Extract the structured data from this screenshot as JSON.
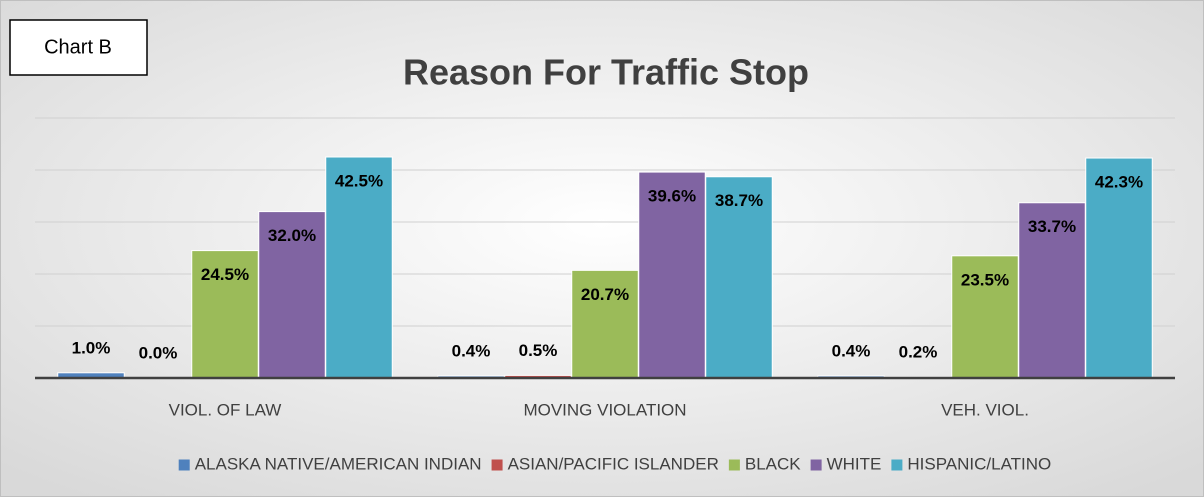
{
  "chart_data": {
    "type": "bar",
    "annotation": "Chart B",
    "title": "Reason For Traffic Stop",
    "categories": [
      "VIOL. OF LAW",
      "MOVING VIOLATION",
      "VEH. VIOL."
    ],
    "series": [
      {
        "name": "ALASKA NATIVE/AMERICAN INDIAN",
        "color": "#4f81bd",
        "values": [
          1.0,
          0.4,
          0.4
        ],
        "value_labels": [
          "1.0%",
          "0.4%",
          "0.4%"
        ]
      },
      {
        "name": "ASIAN/PACIFIC ISLANDER",
        "color": "#c0504d",
        "values": [
          0.0,
          0.5,
          0.2
        ],
        "value_labels": [
          "0.0%",
          "0.5%",
          "0.2%"
        ]
      },
      {
        "name": "BLACK",
        "color": "#9bbb59",
        "values": [
          24.5,
          20.7,
          23.5
        ],
        "value_labels": [
          "24.5%",
          "20.7%",
          "23.5%"
        ]
      },
      {
        "name": "WHITE",
        "color": "#8064a2",
        "values": [
          32.0,
          39.6,
          33.7
        ],
        "value_labels": [
          "32.0%",
          "39.6%",
          "33.7%"
        ]
      },
      {
        "name": "HISPANIC/LATINO",
        "color": "#4bacc6",
        "values": [
          42.5,
          38.7,
          42.3
        ],
        "value_labels": [
          "42.5%",
          "38.7%",
          "42.3%"
        ]
      }
    ],
    "ylim": [
      0,
      50
    ],
    "yticks": [
      0,
      10,
      20,
      30,
      40,
      50
    ],
    "grid": true,
    "legend": "bottom"
  }
}
